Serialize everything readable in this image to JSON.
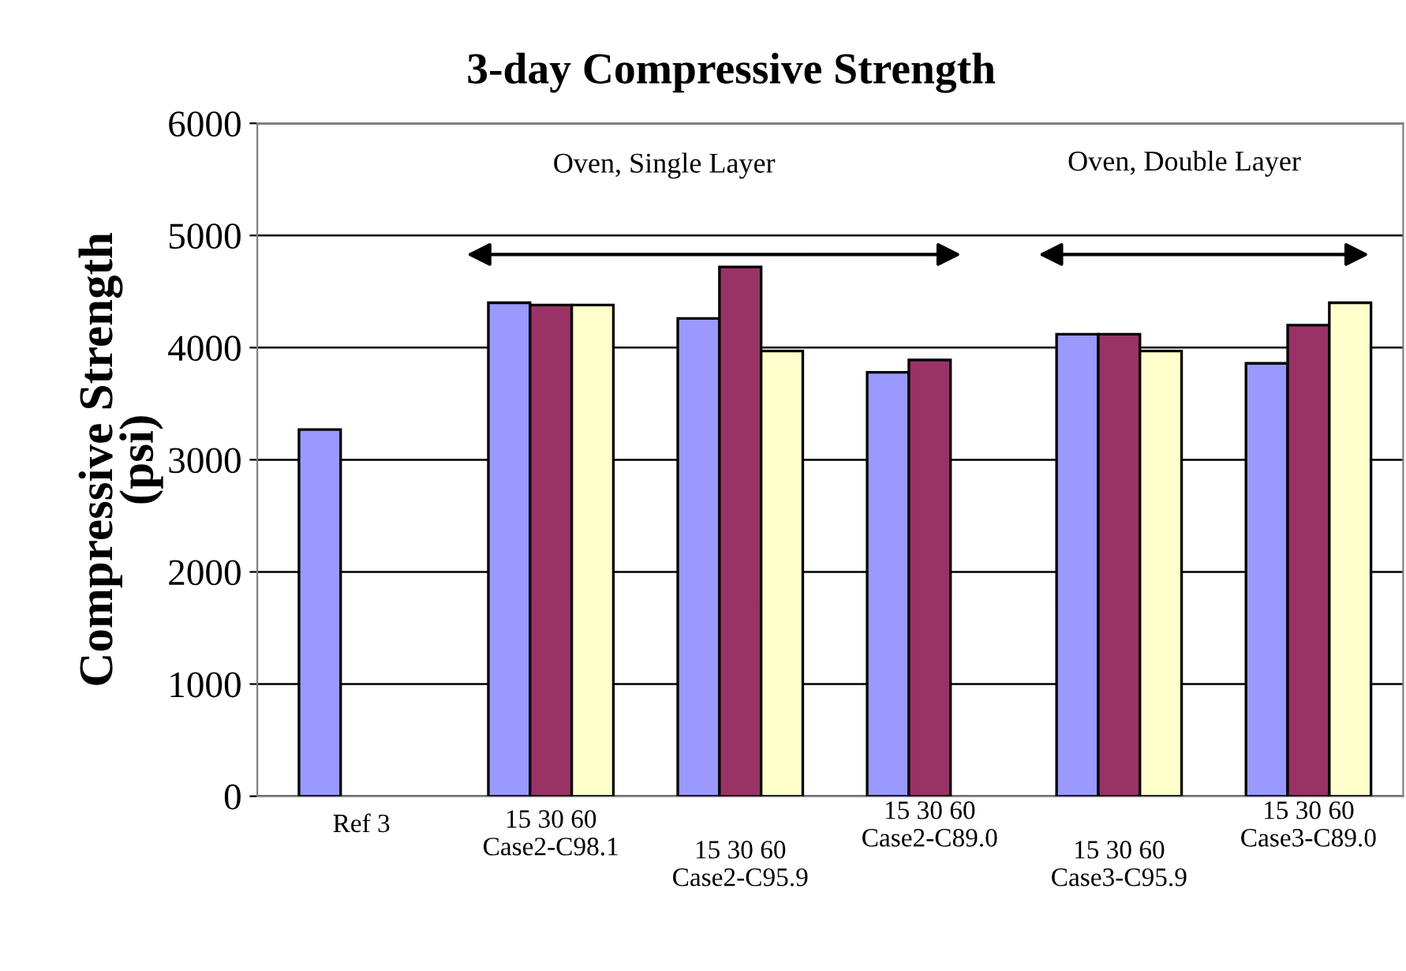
{
  "chart_data": {
    "type": "bar",
    "title": "3-day Compressive Strength",
    "ylabel": "Compressive Strength\n(psi)",
    "categories": [
      "Ref 3",
      "15 30 60\nCase2-C98.1",
      "15 30 60\nCase2-C95.9",
      "15 30 60\nCase2-C89.0",
      "15 30 60\nCase3-C95.9",
      "15 30 60\nCase3-C89.0"
    ],
    "series": [
      {
        "color": "#9999ff",
        "values": [
          3270,
          4400,
          4260,
          3780,
          4120,
          3860
        ]
      },
      {
        "color": "#993366",
        "values": [
          null,
          4380,
          4720,
          3890,
          4120,
          4200
        ]
      },
      {
        "color": "#ffffcc",
        "values": [
          null,
          4380,
          3970,
          null,
          3970,
          4400
        ]
      }
    ],
    "ylim": [
      0,
      6000
    ],
    "yticks": [
      0,
      1000,
      2000,
      3000,
      4000,
      5000,
      6000
    ],
    "grid": "y",
    "legend": false,
    "annotations": [
      "Oven, Single Layer",
      "Oven, Double Layer"
    ]
  }
}
